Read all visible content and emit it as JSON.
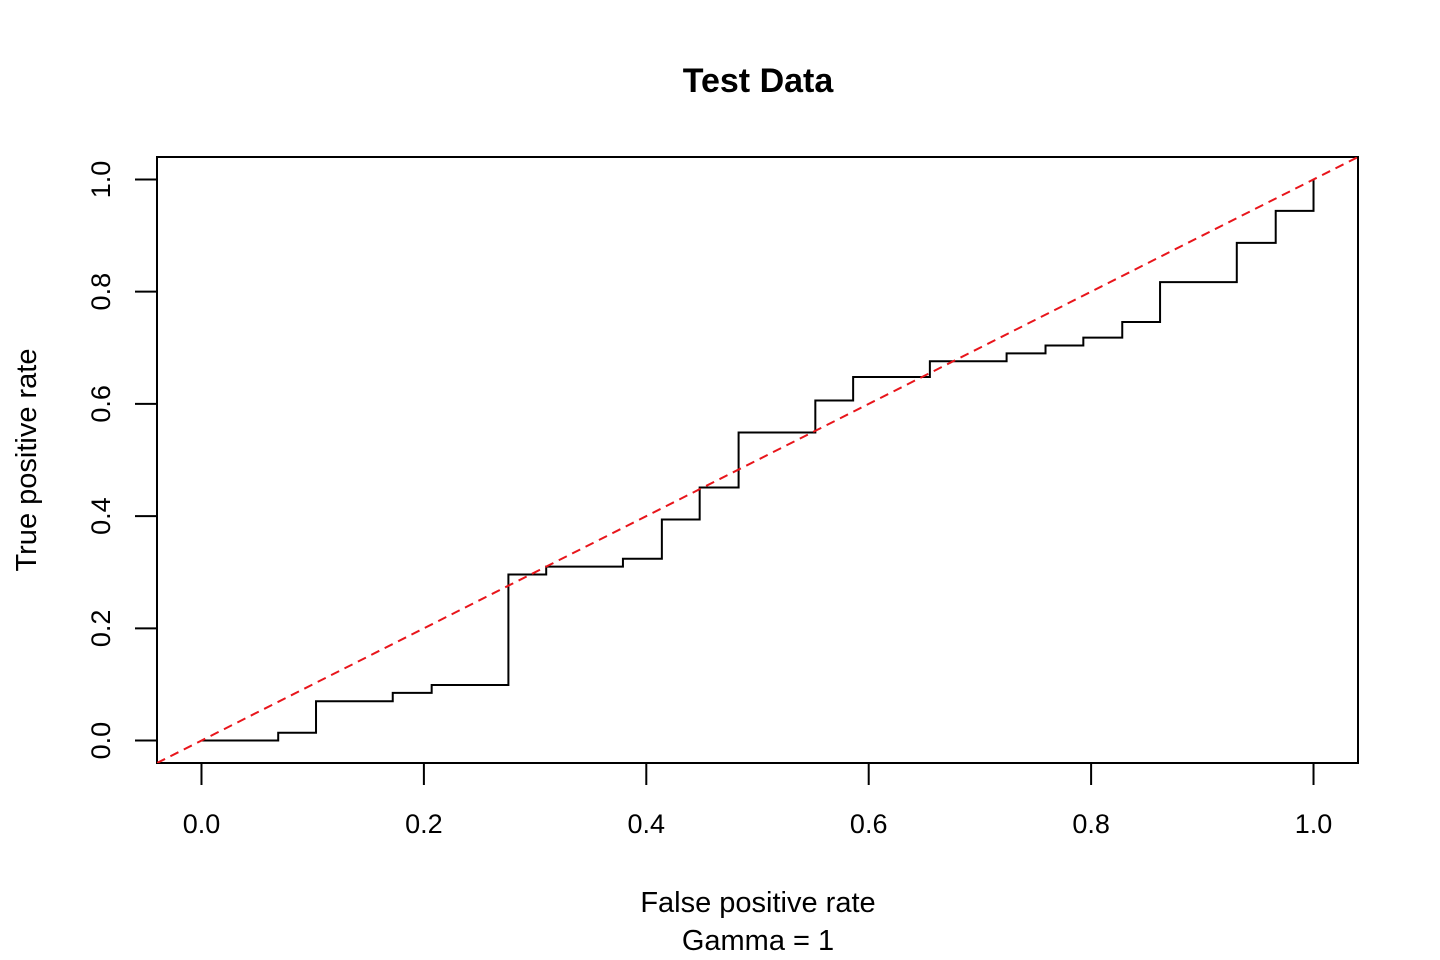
{
  "chart_data": {
    "type": "line",
    "title": "Test Data",
    "xlabel": "False positive rate",
    "xlabel2": "Gamma = 1",
    "ylabel": "True positive rate",
    "xlim": [
      -0.04,
      1.04
    ],
    "ylim": [
      -0.04,
      1.04
    ],
    "xticks": [
      "0.0",
      "0.2",
      "0.4",
      "0.6",
      "0.8",
      "1.0"
    ],
    "yticks": [
      "0.0",
      "0.2",
      "0.4",
      "0.6",
      "0.8",
      "1.0"
    ],
    "grid": false,
    "legend": "none",
    "series": [
      {
        "style": "step",
        "color": "#000000",
        "x": [
          0,
          0.069,
          0.069,
          0.103,
          0.103,
          0.172,
          0.172,
          0.207,
          0.207,
          0.276,
          0.276,
          0.31,
          0.31,
          0.379,
          0.379,
          0.414,
          0.414,
          0.448,
          0.448,
          0.483,
          0.483,
          0.552,
          0.552,
          0.586,
          0.586,
          0.655,
          0.655,
          0.724,
          0.724,
          0.759,
          0.759,
          0.793,
          0.793,
          0.828,
          0.828,
          0.862,
          0.862,
          0.931,
          0.931,
          0.966,
          0.966,
          1.0,
          1.0
        ],
        "y": [
          0,
          0,
          0.014,
          0.014,
          0.07,
          0.07,
          0.085,
          0.085,
          0.099,
          0.099,
          0.296,
          0.296,
          0.31,
          0.31,
          0.324,
          0.324,
          0.394,
          0.394,
          0.451,
          0.451,
          0.549,
          0.549,
          0.606,
          0.606,
          0.648,
          0.648,
          0.676,
          0.676,
          0.69,
          0.69,
          0.704,
          0.704,
          0.718,
          0.718,
          0.746,
          0.746,
          0.817,
          0.817,
          0.887,
          0.887,
          0.944,
          0.944,
          1.0
        ]
      },
      {
        "style": "dashed",
        "color": "#e8151b",
        "x": [
          -0.04,
          1.04
        ],
        "y": [
          -0.04,
          1.04
        ]
      }
    ]
  }
}
